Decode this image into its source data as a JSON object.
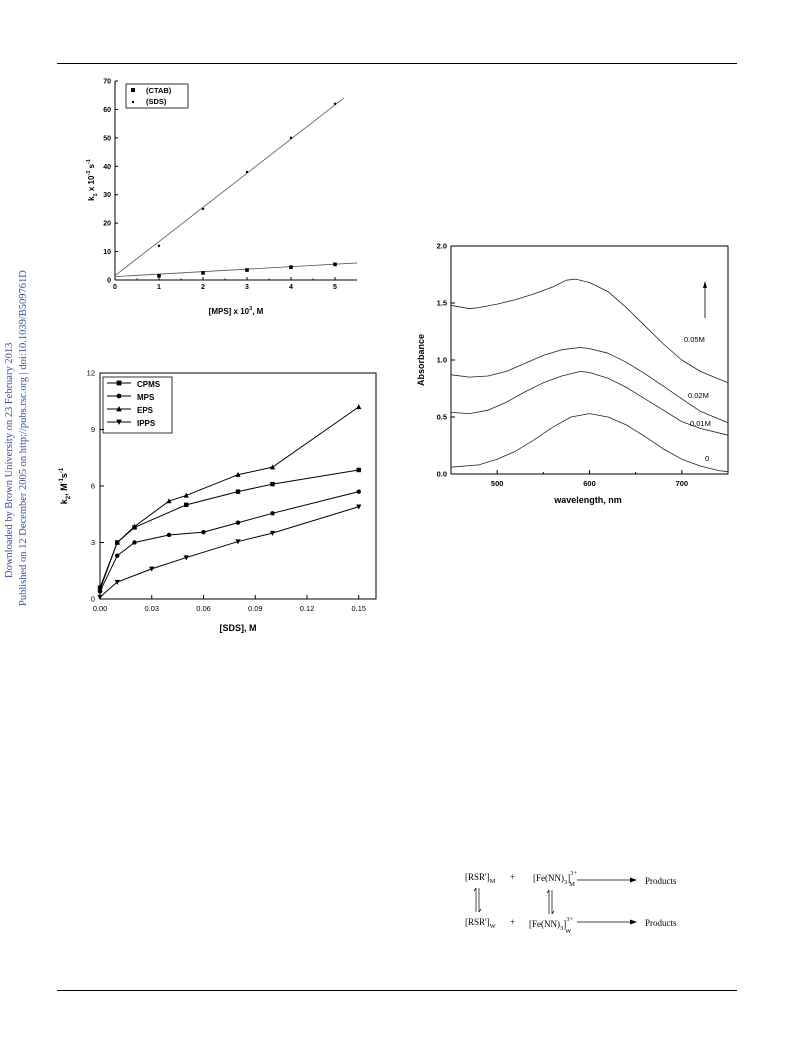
{
  "sidebar": {
    "line1": "Downloaded by Brown University on 23 February 2013",
    "line2": "Published on 12 December 2005 on http://pubs.rsc.org | doi:10.1039/B509761D"
  },
  "chart_data": [
    {
      "type": "scatter",
      "title": "",
      "xlabel": "[MPS] x 10",
      "xlabel_sup": "3",
      "xlabel_unit": ", M",
      "ylabel": "k",
      "ylabel_sub": "1",
      "ylabel_mid": " x 10",
      "ylabel_sup": "-3",
      "ylabel_unit": "s",
      "ylabel_unit_sup": "-1",
      "xlim": [
        0,
        5.5
      ],
      "ylim": [
        0,
        70
      ],
      "xticks": [
        0,
        1,
        2,
        3,
        4,
        5
      ],
      "yticks": [
        0,
        10,
        20,
        30,
        40,
        50,
        60,
        70
      ],
      "legend": "top-left",
      "series": [
        {
          "name": "(CTAB)",
          "marker": "square",
          "x": [
            1,
            2,
            3,
            4,
            5
          ],
          "y": [
            1.5,
            2.5,
            3.5,
            4.5,
            5.5
          ],
          "fit": [
            [
              0,
              1.2
            ],
            [
              5.5,
              6.0
            ]
          ]
        },
        {
          "name": "(SDS)",
          "marker": "dot",
          "x": [
            1,
            2,
            3,
            4,
            5
          ],
          "y": [
            12,
            25,
            38,
            50,
            62
          ],
          "fit": [
            [
              0,
              1.5
            ],
            [
              5.2,
              64
            ]
          ]
        }
      ]
    },
    {
      "type": "line",
      "title": "",
      "xlabel": "[SDS], M",
      "ylabel": "k",
      "ylabel_sub": "2",
      "ylabel_unit": ", M",
      "ylabel_unit_sup": "-1",
      "ylabel_unit2": "s",
      "ylabel_unit2_sup": "-1",
      "xlim": [
        0,
        0.16
      ],
      "ylim": [
        0,
        12
      ],
      "xticks": [
        "0.00",
        "0.03",
        "0.06",
        "0.09",
        "0.12",
        "0.15"
      ],
      "yticks": [
        "0",
        "3",
        "6",
        "9",
        "12"
      ],
      "legend": "top-left",
      "series": [
        {
          "name": "CPMS",
          "marker": "square",
          "x": [
            0,
            0.01,
            0.02,
            0.05,
            0.08,
            0.1,
            0.15
          ],
          "y": [
            0.6,
            3.0,
            3.8,
            5.0,
            5.7,
            6.1,
            6.85
          ]
        },
        {
          "name": "MPS",
          "marker": "circle",
          "x": [
            0,
            0.01,
            0.02,
            0.04,
            0.06,
            0.08,
            0.1,
            0.15
          ],
          "y": [
            0.4,
            2.3,
            3.0,
            3.4,
            3.55,
            4.05,
            4.55,
            5.7
          ]
        },
        {
          "name": "EPS",
          "marker": "triangle-up",
          "x": [
            0,
            0.01,
            0.02,
            0.04,
            0.05,
            0.08,
            0.1,
            0.15
          ],
          "y": [
            0.5,
            3.0,
            3.85,
            5.2,
            5.5,
            6.6,
            7.0,
            10.2
          ]
        },
        {
          "name": "IPPS",
          "marker": "triangle-down",
          "x": [
            0,
            0.01,
            0.03,
            0.05,
            0.08,
            0.1,
            0.15
          ],
          "y": [
            0.1,
            0.9,
            1.6,
            2.2,
            3.05,
            3.5,
            4.9
          ]
        }
      ]
    },
    {
      "type": "line",
      "title": "",
      "xlabel": "wavelength, nm",
      "ylabel": "Absorbance",
      "xlim": [
        450,
        750
      ],
      "ylim": [
        0,
        2.0
      ],
      "xticks": [
        "500",
        "600",
        "700"
      ],
      "yticks": [
        "0.0",
        "0.5",
        "1.0",
        "1.5",
        "2.0"
      ],
      "annotation_arrow": "up",
      "series": [
        {
          "name": "0",
          "x": [
            450,
            480,
            500,
            520,
            540,
            560,
            580,
            600,
            620,
            640,
            660,
            680,
            700,
            720,
            740,
            750
          ],
          "y": [
            0.06,
            0.08,
            0.13,
            0.2,
            0.3,
            0.41,
            0.5,
            0.53,
            0.5,
            0.43,
            0.33,
            0.22,
            0.13,
            0.07,
            0.03,
            0.02
          ]
        },
        {
          "name": "0.01M",
          "x": [
            450,
            470,
            490,
            510,
            530,
            550,
            570,
            590,
            600,
            620,
            640,
            660,
            680,
            700,
            720,
            750
          ],
          "y": [
            0.54,
            0.53,
            0.56,
            0.63,
            0.72,
            0.8,
            0.86,
            0.9,
            0.89,
            0.84,
            0.76,
            0.66,
            0.56,
            0.46,
            0.4,
            0.34
          ]
        },
        {
          "name": "0.02M",
          "x": [
            450,
            470,
            490,
            510,
            530,
            550,
            570,
            590,
            600,
            620,
            640,
            660,
            680,
            700,
            720,
            750
          ],
          "y": [
            0.87,
            0.85,
            0.86,
            0.9,
            0.97,
            1.04,
            1.09,
            1.11,
            1.1,
            1.06,
            0.98,
            0.88,
            0.77,
            0.66,
            0.55,
            0.45
          ]
        },
        {
          "name": "0.05M",
          "x": [
            450,
            470,
            480,
            500,
            520,
            540,
            560,
            575,
            585,
            600,
            620,
            640,
            660,
            680,
            700,
            720,
            750
          ],
          "y": [
            1.48,
            1.45,
            1.46,
            1.49,
            1.53,
            1.58,
            1.64,
            1.7,
            1.71,
            1.68,
            1.6,
            1.46,
            1.3,
            1.14,
            1.0,
            0.9,
            0.8
          ]
        }
      ]
    }
  ],
  "scheme": {
    "rsr_m": "[RSR']",
    "rsr_m_sub": "M",
    "plus": "+",
    "fe_m": "[Fe(NN)",
    "fe_sub3": "3",
    "fe_close": "]",
    "fe_sup": "3+",
    "fe_m_sub": "M",
    "products": "Products",
    "rsr_w": "[RSR']",
    "rsr_w_sub": "W",
    "fe_w_sub": "W"
  }
}
